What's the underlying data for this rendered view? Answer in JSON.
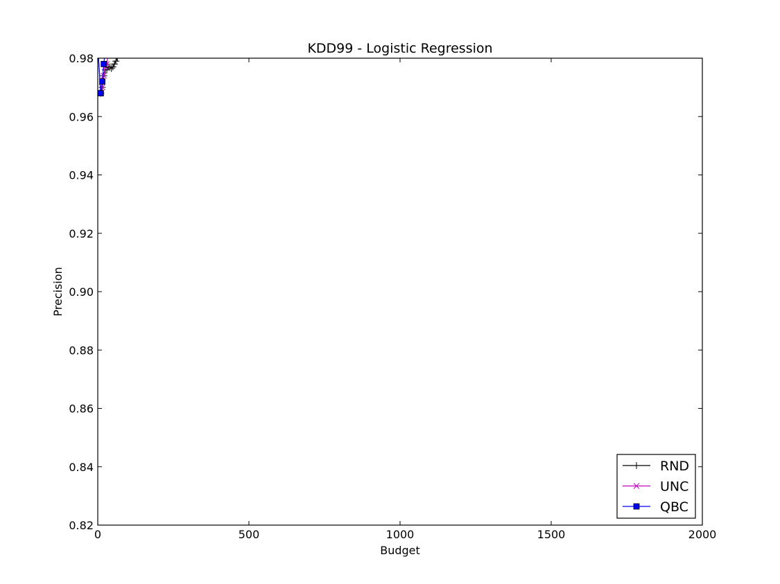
{
  "chart_data": {
    "type": "line",
    "title": "KDD99 - Logistic Regression",
    "xlabel": "Budget",
    "ylabel": "Precision",
    "xlim": [
      0,
      2000
    ],
    "ylim": [
      0.82,
      0.98
    ],
    "xticks": [
      0,
      500,
      1000,
      1500,
      2000
    ],
    "xtick_labels": [
      "0",
      "500",
      "1000",
      "1500",
      "2000"
    ],
    "yticks": [
      0.82,
      0.84,
      0.86,
      0.88,
      0.9,
      0.92,
      0.94,
      0.96,
      0.98
    ],
    "ytick_labels": [
      "0.82",
      "0.84",
      "0.86",
      "0.88",
      "0.90",
      "0.92",
      "0.94",
      "0.96",
      "0.98"
    ],
    "grid": false,
    "legend_position": "lower-right",
    "series": [
      {
        "name": "RND",
        "color": "#000000",
        "marker": "plus",
        "x": [
          0,
          10,
          15,
          20,
          25,
          30,
          35,
          40,
          45,
          50,
          55,
          60,
          65
        ],
        "y": [
          0.984,
          0.968,
          0.97,
          0.974,
          0.976,
          0.976,
          0.977,
          0.977,
          0.9765,
          0.977,
          0.978,
          0.979,
          0.98
        ]
      },
      {
        "name": "UNC",
        "color": "#bf00bf",
        "marker": "x",
        "x": [
          10,
          15,
          20,
          25,
          30,
          35
        ],
        "y": [
          0.968,
          0.97,
          0.974,
          0.977,
          0.978,
          0.982
        ]
      },
      {
        "name": "QBC",
        "color": "#0000ff",
        "marker": "square",
        "x": [
          0,
          10,
          15,
          20,
          25
        ],
        "y": [
          0.984,
          0.968,
          0.972,
          0.978,
          0.983
        ]
      }
    ]
  }
}
